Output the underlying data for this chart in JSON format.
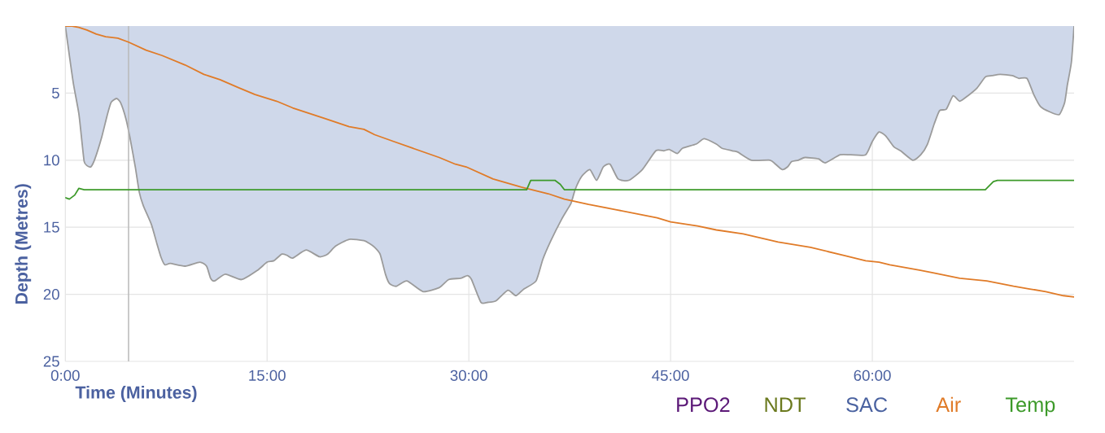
{
  "chart_data": {
    "type": "area",
    "xlabel": "Time (Minutes)",
    "ylabel": "Depth (Metres)",
    "xlim": [
      0,
      75
    ],
    "ylim": [
      25,
      0
    ],
    "xticks": [
      {
        "value": 0,
        "label": "0:00"
      },
      {
        "value": 15,
        "label": "15:00"
      },
      {
        "value": 30,
        "label": "30:00"
      },
      {
        "value": 45,
        "label": "45:00"
      },
      {
        "value": 60,
        "label": "60:00"
      }
    ],
    "yticks": [
      5,
      10,
      15,
      20,
      25
    ],
    "grid": true,
    "legend": "bottom right",
    "annotations": [
      "PPO2",
      "NDT",
      "SAC"
    ],
    "ref_lines": [
      {
        "axis": "x",
        "value": 4.7,
        "color": "#b9b9b9"
      }
    ],
    "series": [
      {
        "color": "#cfd8ea",
        "x": [
          0,
          0.3,
          0.6,
          1.0,
          1.2,
          1.4,
          1.6,
          1.9,
          2.2,
          2.7,
          3.1,
          3.4,
          3.8,
          4.1,
          4.5,
          4.8,
          5.2,
          5.5,
          5.8,
          6.4,
          6.8,
          7.1,
          7.4,
          7.8,
          8.9,
          10.0,
          10.5,
          10.8,
          11.1,
          11.9,
          13.1,
          14.3,
          15.0,
          15.5,
          16.1,
          16.5,
          16.9,
          17.9,
          18.9,
          19.5,
          20.1,
          21.1,
          22.2,
          22.6,
          23.0,
          23.4,
          23.8,
          24.1,
          24.6,
          25.4,
          26.6,
          27.8,
          28.5,
          29.4,
          29.9,
          30.2,
          30.9,
          31.4,
          32.0,
          32.9,
          33.5,
          34.1,
          35.0,
          35.5,
          36.1,
          36.9,
          37.6,
          37.9,
          38.4,
          39.0,
          39.5,
          40.0,
          40.5,
          41.1,
          41.9,
          42.9,
          43.9,
          44.5,
          44.9,
          45.5,
          45.9,
          46.9,
          47.5,
          48.4,
          48.8,
          49.6,
          50.0,
          51.0,
          52.4,
          52.8,
          53.3,
          53.7,
          54.0,
          54.5,
          55.0,
          56.0,
          56.5,
          57.6,
          58.4,
          59.5,
          60.0,
          60.5,
          61.0,
          61.6,
          62.1,
          63.0,
          63.6,
          64.1,
          64.6,
          65.0,
          65.5,
          66.0,
          66.5,
          67.1,
          67.8,
          68.4,
          68.9,
          69.5,
          70.4,
          70.9,
          71.5,
          72.0,
          72.5,
          73.2,
          73.9,
          74.3,
          74.5,
          74.8,
          75.0
        ],
        "values": [
          0,
          2.2,
          4.3,
          6.5,
          8.3,
          10.1,
          10.4,
          10.5,
          9.9,
          8.3,
          6.7,
          5.7,
          5.4,
          5.7,
          6.9,
          8.3,
          10.5,
          12.4,
          13.4,
          14.8,
          16.2,
          17.2,
          17.8,
          17.7,
          17.9,
          17.6,
          17.9,
          18.8,
          19.0,
          18.5,
          18.9,
          18.2,
          17.6,
          17.5,
          17.0,
          17.1,
          17.3,
          16.7,
          17.2,
          17.0,
          16.4,
          15.9,
          16.0,
          16.2,
          16.5,
          17.0,
          18.5,
          19.2,
          19.4,
          19.0,
          19.8,
          19.5,
          18.9,
          18.8,
          18.6,
          18.9,
          20.6,
          20.6,
          20.5,
          19.7,
          20.1,
          19.6,
          19.0,
          17.4,
          16.0,
          14.4,
          13.2,
          12.2,
          11.2,
          10.7,
          11.5,
          10.5,
          10.3,
          11.4,
          11.5,
          10.7,
          9.3,
          9.3,
          9.2,
          9.5,
          9.1,
          8.8,
          8.4,
          8.8,
          9.1,
          9.3,
          9.4,
          10.0,
          10.0,
          10.3,
          10.7,
          10.5,
          10.1,
          10.0,
          9.8,
          9.9,
          10.2,
          9.6,
          9.6,
          9.6,
          8.6,
          7.9,
          8.2,
          9.0,
          9.3,
          10.0,
          9.6,
          8.8,
          7.3,
          6.3,
          6.2,
          5.2,
          5.6,
          5.2,
          4.6,
          3.8,
          3.7,
          3.6,
          3.7,
          3.9,
          3.9,
          5.1,
          6.0,
          6.4,
          6.6,
          5.7,
          4.4,
          2.7,
          0
        ]
      },
      {
        "name": "Air",
        "type": "line",
        "color": "#e07b28",
        "x": [
          0,
          0.5,
          1.0,
          1.6,
          2.3,
          3.0,
          3.9,
          4.7,
          6.0,
          7.2,
          8.9,
          10.3,
          11.5,
          12.9,
          14.1,
          15.7,
          16.9,
          19.3,
          21.1,
          22.2,
          23.0,
          24.4,
          25.8,
          27.8,
          29.0,
          29.8,
          31.8,
          33.9,
          35.9,
          37.1,
          38.9,
          41.0,
          43.0,
          44.0,
          45.0,
          47.0,
          48.4,
          50.4,
          53.0,
          55.4,
          57.9,
          59.5,
          60.5,
          61.3,
          63.5,
          64.5,
          66.5,
          68.5,
          70.5,
          71.7,
          72.9,
          74.2,
          75.0
        ],
        "values": [
          0,
          0,
          0.1,
          0.3,
          0.6,
          0.8,
          0.9,
          1.2,
          1.8,
          2.2,
          2.9,
          3.6,
          4.0,
          4.6,
          5.1,
          5.6,
          6.1,
          6.9,
          7.5,
          7.7,
          8.1,
          8.6,
          9.1,
          9.8,
          10.3,
          10.5,
          11.4,
          12.0,
          12.5,
          12.9,
          13.3,
          13.7,
          14.1,
          14.3,
          14.6,
          14.9,
          15.2,
          15.5,
          16.1,
          16.5,
          17.1,
          17.5,
          17.6,
          17.8,
          18.2,
          18.4,
          18.8,
          19.0,
          19.4,
          19.6,
          19.8,
          20.1,
          20.2
        ]
      },
      {
        "name": "Temp",
        "type": "line",
        "color": "#3d9a2a",
        "x": [
          0,
          0.3,
          0.7,
          1.0,
          1.4,
          34.3,
          34.6,
          35.0,
          36.4,
          36.8,
          37.1,
          68.4,
          69.0,
          69.3,
          75.0
        ],
        "values": [
          12.8,
          12.9,
          12.6,
          12.1,
          12.2,
          12.2,
          11.5,
          11.5,
          11.5,
          11.8,
          12.2,
          12.2,
          11.6,
          11.5,
          11.5
        ]
      }
    ]
  }
}
